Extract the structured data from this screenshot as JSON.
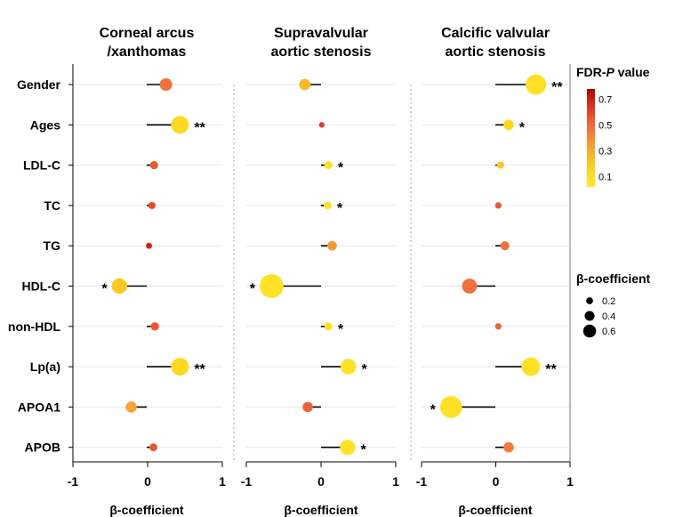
{
  "chart_data": {
    "type": "lollipop",
    "rows": [
      "Gender",
      "Ages",
      "LDL-C",
      "TC",
      "TG",
      "HDL-C",
      "non-HDL",
      "Lp(a)",
      "APOA1",
      "APOB"
    ],
    "xlim": [
      -1,
      1
    ],
    "x_ticks": [
      "-1",
      "0",
      "1"
    ],
    "xlabel": "β-coefficient",
    "panels": [
      {
        "title_lines": [
          "Corneal arcus",
          "/xanthomas"
        ],
        "beta": [
          0.26,
          0.45,
          0.1,
          0.07,
          0.03,
          -0.37,
          0.11,
          0.45,
          -0.21,
          0.09
        ],
        "fdr_p": [
          0.3,
          0.08,
          0.4,
          0.45,
          0.6,
          0.12,
          0.4,
          0.08,
          0.2,
          0.4
        ],
        "stars": [
          "",
          "**",
          "",
          "",
          "",
          "*",
          "",
          "**",
          "",
          ""
        ]
      },
      {
        "title_lines": [
          "Supravalvular",
          "aortic stenosis"
        ],
        "beta": [
          -0.22,
          0.01,
          0.1,
          0.09,
          0.15,
          -0.67,
          0.1,
          0.37,
          -0.18,
          0.36
        ],
        "fdr_p": [
          0.15,
          0.5,
          0.05,
          0.05,
          0.22,
          0.05,
          0.05,
          0.05,
          0.35,
          0.05
        ],
        "stars": [
          "",
          "",
          "*",
          "*",
          "",
          "*",
          "*",
          "*",
          "",
          "*"
        ]
      },
      {
        "title_lines": [
          "Calcific valvular",
          "aortic stenosis"
        ],
        "beta": [
          0.55,
          0.18,
          0.07,
          0.04,
          0.13,
          -0.35,
          0.04,
          0.48,
          -0.6,
          0.18
        ],
        "fdr_p": [
          0.05,
          0.08,
          0.12,
          0.4,
          0.3,
          0.3,
          0.35,
          0.05,
          0.05,
          0.28
        ],
        "stars": [
          "**",
          "*",
          "",
          "",
          "",
          "",
          "",
          "**",
          "*",
          ""
        ]
      }
    ],
    "legend_color": {
      "title_prefix": "FDR-",
      "title_italic": "P",
      "title_suffix": " value",
      "ticks": [
        "0.7",
        "0.5",
        "0.3",
        "0.1"
      ],
      "tick_values": [
        0.7,
        0.5,
        0.3,
        0.1
      ],
      "range": [
        0.02,
        0.78
      ],
      "colors": [
        "#b30000",
        "#de3c27",
        "#f2703d",
        "#f7a336",
        "#fcd21e",
        "#ffea2a"
      ]
    },
    "legend_size": {
      "title": "β-coefficient",
      "labels": [
        "0.2",
        "0.4",
        "0.6"
      ],
      "values": [
        0.2,
        0.4,
        0.6
      ]
    }
  }
}
